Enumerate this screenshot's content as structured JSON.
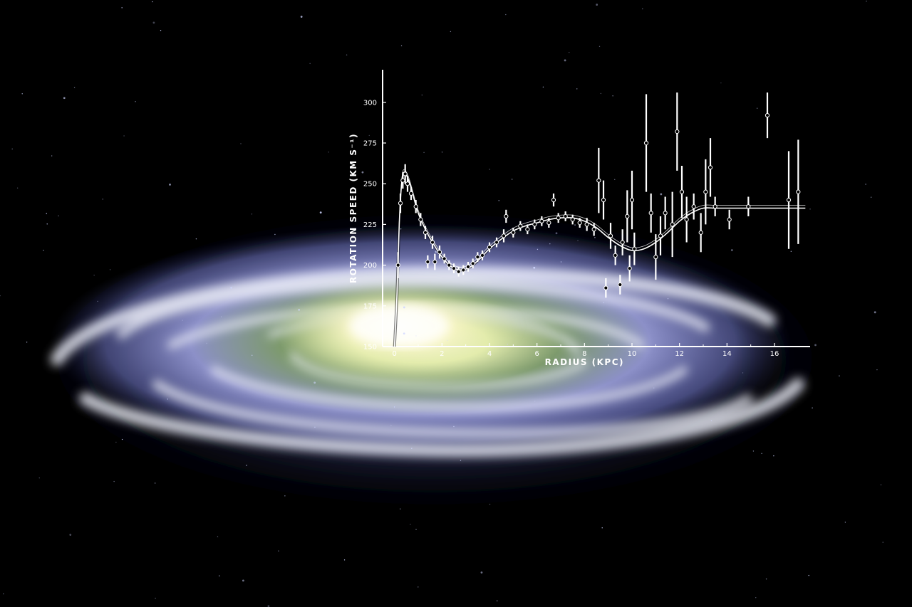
{
  "colors": {
    "background": "#000000",
    "chart_ink": "#ffffff",
    "galaxy_core": "#fffbe0",
    "galaxy_inner": "#c8dc8a",
    "galaxy_arms": "#d4d8f4",
    "galaxy_halo": "#3a3f78"
  },
  "chart_data": {
    "type": "scatter",
    "xlabel": "RADIUS (KPC)",
    "ylabel": "ROTATION SPEED (KM S⁻¹)",
    "xlim": [
      -0.5,
      17.5
    ],
    "ylim": [
      150,
      320
    ],
    "x_ticks": [
      "0",
      "2",
      "4",
      "6",
      "8",
      "10",
      "12",
      "14",
      "16"
    ],
    "y_ticks": [
      "150",
      "175",
      "200",
      "225",
      "250",
      "275",
      "300"
    ],
    "grid": false,
    "legend": "none",
    "series": [
      {
        "kind": "fitted-curve",
        "x": [
          0.0,
          0.1,
          0.2,
          0.3,
          0.4,
          0.6,
          0.8,
          1.0,
          1.3,
          1.6,
          2.0,
          2.4,
          2.8,
          3.2,
          3.6,
          4.0,
          4.5,
          5.0,
          5.5,
          6.0,
          6.5,
          7.0,
          7.5,
          8.0,
          8.5,
          9.0,
          9.5,
          10.0,
          10.5,
          11.0,
          11.5,
          12.0,
          12.5,
          13.0,
          13.5,
          14.0,
          17.3
        ],
        "y": [
          150,
          180,
          225,
          250,
          257,
          252,
          242,
          232,
          222,
          214,
          205,
          199,
          197,
          199,
          204,
          210,
          216,
          221,
          224,
          226,
          228,
          229,
          229,
          227,
          223,
          217,
          212,
          209,
          210,
          214,
          220,
          227,
          232,
          235,
          235,
          235,
          235
        ]
      },
      {
        "kind": "observations",
        "points": [
          {
            "x": 0.15,
            "y": 200,
            "err": 8
          },
          {
            "x": 0.25,
            "y": 238,
            "err": 6
          },
          {
            "x": 0.35,
            "y": 252,
            "err": 5
          },
          {
            "x": 0.45,
            "y": 256,
            "err": 6
          },
          {
            "x": 0.55,
            "y": 250,
            "err": 5
          },
          {
            "x": 0.7,
            "y": 244,
            "err": 4
          },
          {
            "x": 0.9,
            "y": 236,
            "err": 4
          },
          {
            "x": 1.1,
            "y": 228,
            "err": 4
          },
          {
            "x": 1.3,
            "y": 220,
            "err": 4
          },
          {
            "x": 1.4,
            "y": 202,
            "err": 4
          },
          {
            "x": 1.6,
            "y": 214,
            "err": 4
          },
          {
            "x": 1.7,
            "y": 202,
            "err": 5
          },
          {
            "x": 1.9,
            "y": 208,
            "err": 4
          },
          {
            "x": 2.1,
            "y": 204,
            "err": 3
          },
          {
            "x": 2.3,
            "y": 200,
            "err": 3
          },
          {
            "x": 2.5,
            "y": 198,
            "err": 3
          },
          {
            "x": 2.7,
            "y": 196,
            "err": 3
          },
          {
            "x": 2.9,
            "y": 197,
            "err": 3
          },
          {
            "x": 3.1,
            "y": 199,
            "err": 3
          },
          {
            "x": 3.3,
            "y": 201,
            "err": 3
          },
          {
            "x": 3.5,
            "y": 205,
            "err": 3
          },
          {
            "x": 3.7,
            "y": 206,
            "err": 3
          },
          {
            "x": 4.0,
            "y": 211,
            "err": 3
          },
          {
            "x": 4.3,
            "y": 214,
            "err": 3
          },
          {
            "x": 4.6,
            "y": 218,
            "err": 4
          },
          {
            "x": 4.7,
            "y": 230,
            "err": 4
          },
          {
            "x": 5.0,
            "y": 220,
            "err": 3
          },
          {
            "x": 5.3,
            "y": 224,
            "err": 3
          },
          {
            "x": 5.6,
            "y": 222,
            "err": 3
          },
          {
            "x": 5.9,
            "y": 225,
            "err": 3
          },
          {
            "x": 6.2,
            "y": 227,
            "err": 3
          },
          {
            "x": 6.5,
            "y": 226,
            "err": 3
          },
          {
            "x": 6.7,
            "y": 240,
            "err": 4
          },
          {
            "x": 6.9,
            "y": 229,
            "err": 3
          },
          {
            "x": 7.2,
            "y": 230,
            "err": 3
          },
          {
            "x": 7.5,
            "y": 228,
            "err": 3
          },
          {
            "x": 7.8,
            "y": 226,
            "err": 3
          },
          {
            "x": 8.1,
            "y": 225,
            "err": 4
          },
          {
            "x": 8.4,
            "y": 222,
            "err": 4
          },
          {
            "x": 8.6,
            "y": 252,
            "err": 20
          },
          {
            "x": 8.8,
            "y": 240,
            "err": 12
          },
          {
            "x": 8.9,
            "y": 186,
            "err": 6
          },
          {
            "x": 9.1,
            "y": 218,
            "err": 8
          },
          {
            "x": 9.3,
            "y": 206,
            "err": 6
          },
          {
            "x": 9.5,
            "y": 188,
            "err": 6
          },
          {
            "x": 9.6,
            "y": 214,
            "err": 8
          },
          {
            "x": 9.8,
            "y": 230,
            "err": 16
          },
          {
            "x": 9.9,
            "y": 198,
            "err": 8
          },
          {
            "x": 10.0,
            "y": 240,
            "err": 18
          },
          {
            "x": 10.1,
            "y": 210,
            "err": 10
          },
          {
            "x": 10.6,
            "y": 275,
            "err": 30
          },
          {
            "x": 10.8,
            "y": 232,
            "err": 12
          },
          {
            "x": 11.0,
            "y": 205,
            "err": 14
          },
          {
            "x": 11.2,
            "y": 218,
            "err": 12
          },
          {
            "x": 11.4,
            "y": 232,
            "err": 10
          },
          {
            "x": 11.7,
            "y": 225,
            "err": 20
          },
          {
            "x": 11.9,
            "y": 282,
            "err": 24
          },
          {
            "x": 12.1,
            "y": 245,
            "err": 16
          },
          {
            "x": 12.3,
            "y": 228,
            "err": 14
          },
          {
            "x": 12.6,
            "y": 236,
            "err": 8
          },
          {
            "x": 12.9,
            "y": 220,
            "err": 12
          },
          {
            "x": 13.1,
            "y": 245,
            "err": 20
          },
          {
            "x": 13.3,
            "y": 260,
            "err": 18
          },
          {
            "x": 13.5,
            "y": 236,
            "err": 6
          },
          {
            "x": 14.1,
            "y": 228,
            "err": 6
          },
          {
            "x": 14.9,
            "y": 236,
            "err": 6
          },
          {
            "x": 15.7,
            "y": 292,
            "err": 14
          },
          {
            "x": 16.6,
            "y": 240,
            "err": 30
          },
          {
            "x": 17.0,
            "y": 245,
            "err": 32
          }
        ]
      }
    ]
  }
}
